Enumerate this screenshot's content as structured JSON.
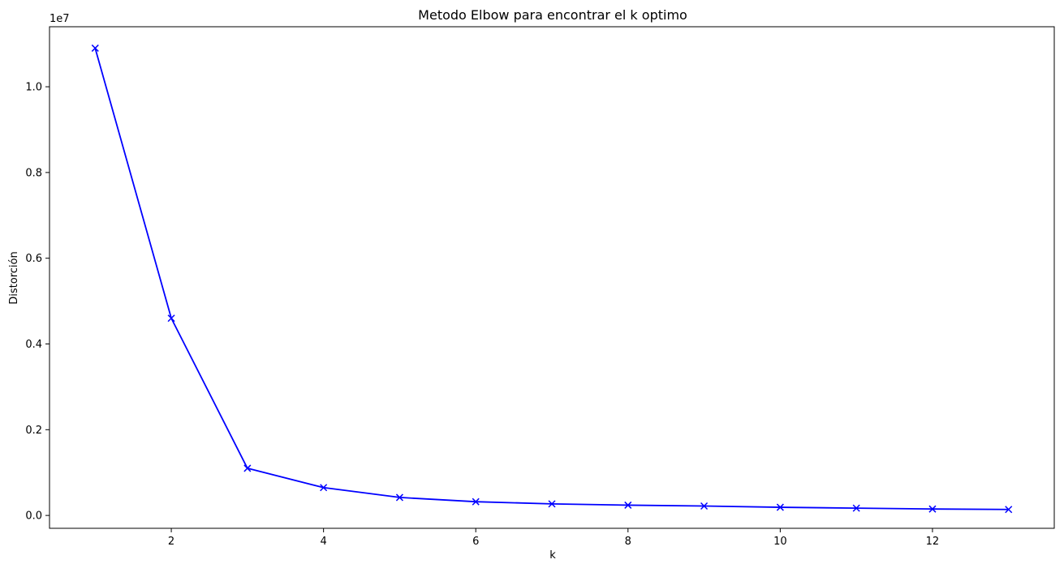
{
  "chart_data": {
    "type": "line",
    "title": "Metodo Elbow para encontrar el k optimo",
    "xlabel": "k",
    "ylabel": "Distorción",
    "y_offset_text": "1e7",
    "x_ticks": [
      2,
      4,
      6,
      8,
      10,
      12
    ],
    "y_ticks": [
      "0.0",
      "0.2",
      "0.4",
      "0.6",
      "0.8",
      "1.0"
    ],
    "xlim": [
      0.4,
      13.6
    ],
    "ylim": [
      -0.03,
      1.14
    ],
    "y_scale_note": "values in units of 1e7",
    "grid": false,
    "line_color": "#0000ff",
    "marker": "x",
    "series": [
      {
        "x": [
          1,
          2,
          3,
          4,
          5,
          6,
          7,
          8,
          9,
          10,
          11,
          12,
          13
        ],
        "y": [
          1.09,
          0.46,
          0.11,
          0.065,
          0.042,
          0.032,
          0.027,
          0.024,
          0.022,
          0.019,
          0.017,
          0.015,
          0.014
        ]
      }
    ]
  }
}
